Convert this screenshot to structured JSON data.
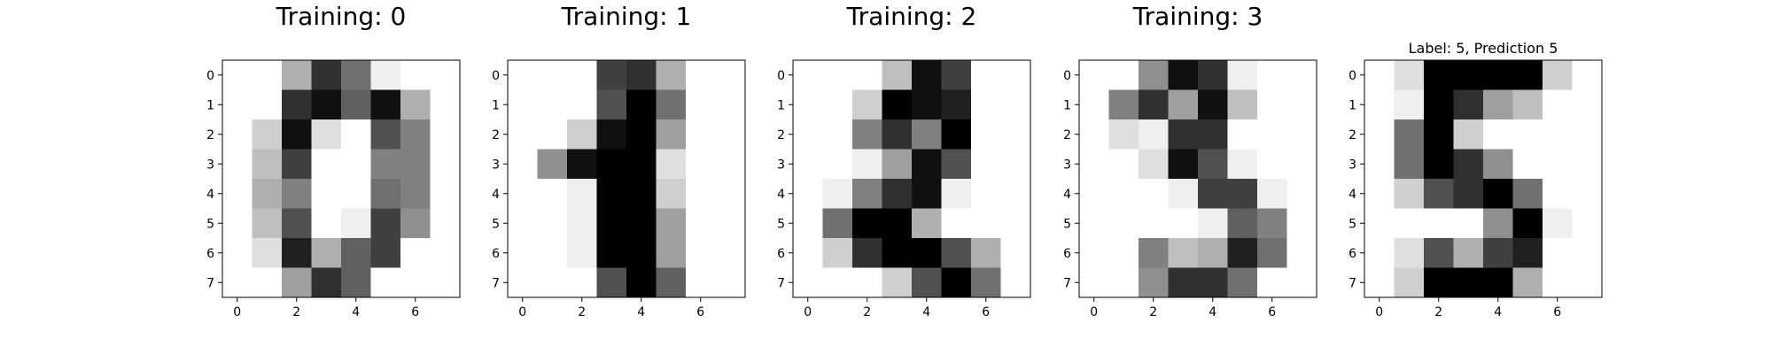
{
  "chart_data": [
    {
      "type": "heatmap",
      "title": "Training: 0",
      "colormap": "gray_r",
      "vmin": 0,
      "vmax": 16,
      "x_ticks": [
        0,
        2,
        4,
        6
      ],
      "y_ticks": [
        0,
        1,
        2,
        3,
        4,
        5,
        6,
        7
      ],
      "xlim": [
        -0.5,
        7.5
      ],
      "ylim": [
        7.5,
        -0.5
      ],
      "grid": false,
      "values": [
        [
          0,
          0,
          5,
          13,
          9,
          1,
          0,
          0
        ],
        [
          0,
          0,
          13,
          15,
          10,
          15,
          5,
          0
        ],
        [
          0,
          3,
          15,
          2,
          0,
          11,
          8,
          0
        ],
        [
          0,
          4,
          12,
          0,
          0,
          8,
          8,
          0
        ],
        [
          0,
          5,
          8,
          0,
          0,
          9,
          8,
          0
        ],
        [
          0,
          4,
          11,
          0,
          1,
          12,
          7,
          0
        ],
        [
          0,
          2,
          14,
          5,
          10,
          12,
          0,
          0
        ],
        [
          0,
          0,
          6,
          13,
          10,
          0,
          0,
          0
        ]
      ]
    },
    {
      "type": "heatmap",
      "title": "Training: 1",
      "colormap": "gray_r",
      "vmin": 0,
      "vmax": 16,
      "x_ticks": [
        0,
        2,
        4,
        6
      ],
      "y_ticks": [
        0,
        1,
        2,
        3,
        4,
        5,
        6,
        7
      ],
      "xlim": [
        -0.5,
        7.5
      ],
      "ylim": [
        7.5,
        -0.5
      ],
      "grid": false,
      "values": [
        [
          0,
          0,
          0,
          12,
          13,
          5,
          0,
          0
        ],
        [
          0,
          0,
          0,
          11,
          16,
          9,
          0,
          0
        ],
        [
          0,
          0,
          3,
          15,
          16,
          6,
          0,
          0
        ],
        [
          0,
          7,
          15,
          16,
          16,
          2,
          0,
          0
        ],
        [
          0,
          0,
          1,
          16,
          16,
          3,
          0,
          0
        ],
        [
          0,
          0,
          1,
          16,
          16,
          6,
          0,
          0
        ],
        [
          0,
          0,
          1,
          16,
          16,
          6,
          0,
          0
        ],
        [
          0,
          0,
          0,
          11,
          16,
          10,
          0,
          0
        ]
      ]
    },
    {
      "type": "heatmap",
      "title": "Training: 2",
      "colormap": "gray_r",
      "vmin": 0,
      "vmax": 16,
      "x_ticks": [
        0,
        2,
        4,
        6
      ],
      "y_ticks": [
        0,
        1,
        2,
        3,
        4,
        5,
        6,
        7
      ],
      "xlim": [
        -0.5,
        7.5
      ],
      "ylim": [
        7.5,
        -0.5
      ],
      "grid": false,
      "values": [
        [
          0,
          0,
          0,
          4,
          15,
          12,
          0,
          0
        ],
        [
          0,
          0,
          3,
          16,
          15,
          14,
          0,
          0
        ],
        [
          0,
          0,
          8,
          13,
          8,
          16,
          0,
          0
        ],
        [
          0,
          0,
          1,
          6,
          15,
          11,
          0,
          0
        ],
        [
          0,
          1,
          8,
          13,
          15,
          1,
          0,
          0
        ],
        [
          0,
          9,
          16,
          16,
          5,
          0,
          0,
          0
        ],
        [
          0,
          3,
          13,
          16,
          16,
          11,
          5,
          0
        ],
        [
          0,
          0,
          0,
          3,
          11,
          16,
          9,
          0
        ]
      ]
    },
    {
      "type": "heatmap",
      "title": "Training: 3",
      "colormap": "gray_r",
      "vmin": 0,
      "vmax": 16,
      "x_ticks": [
        0,
        2,
        4,
        6
      ],
      "y_ticks": [
        0,
        1,
        2,
        3,
        4,
        5,
        6,
        7
      ],
      "xlim": [
        -0.5,
        7.5
      ],
      "ylim": [
        7.5,
        -0.5
      ],
      "grid": false,
      "values": [
        [
          0,
          0,
          7,
          15,
          13,
          1,
          0,
          0
        ],
        [
          0,
          8,
          13,
          6,
          15,
          4,
          0,
          0
        ],
        [
          0,
          2,
          1,
          13,
          13,
          0,
          0,
          0
        ],
        [
          0,
          0,
          2,
          15,
          11,
          1,
          0,
          0
        ],
        [
          0,
          0,
          0,
          1,
          12,
          12,
          1,
          0
        ],
        [
          0,
          0,
          0,
          0,
          1,
          10,
          8,
          0
        ],
        [
          0,
          0,
          8,
          4,
          5,
          14,
          9,
          0
        ],
        [
          0,
          0,
          7,
          13,
          13,
          9,
          0,
          0
        ]
      ]
    },
    {
      "type": "heatmap",
      "title": "Label: 5, Prediction 5",
      "colormap": "gray_r",
      "vmin": 0,
      "vmax": 16,
      "x_ticks": [
        0,
        2,
        4,
        6
      ],
      "y_ticks": [
        0,
        1,
        2,
        3,
        4,
        5,
        6,
        7
      ],
      "xlim": [
        -0.5,
        7.5
      ],
      "ylim": [
        7.5,
        -0.5
      ],
      "grid": false,
      "values": [
        [
          0,
          2,
          16,
          16,
          16,
          16,
          3,
          0
        ],
        [
          0,
          1,
          16,
          13,
          6,
          4,
          0,
          0
        ],
        [
          0,
          9,
          16,
          3,
          0,
          0,
          0,
          0
        ],
        [
          0,
          9,
          16,
          13,
          7,
          0,
          0,
          0
        ],
        [
          0,
          3,
          11,
          13,
          16,
          9,
          0,
          0
        ],
        [
          0,
          0,
          0,
          0,
          7,
          16,
          1,
          0
        ],
        [
          0,
          2,
          11,
          5,
          12,
          14,
          0,
          0
        ],
        [
          0,
          3,
          16,
          16,
          16,
          5,
          0,
          0
        ]
      ]
    }
  ]
}
